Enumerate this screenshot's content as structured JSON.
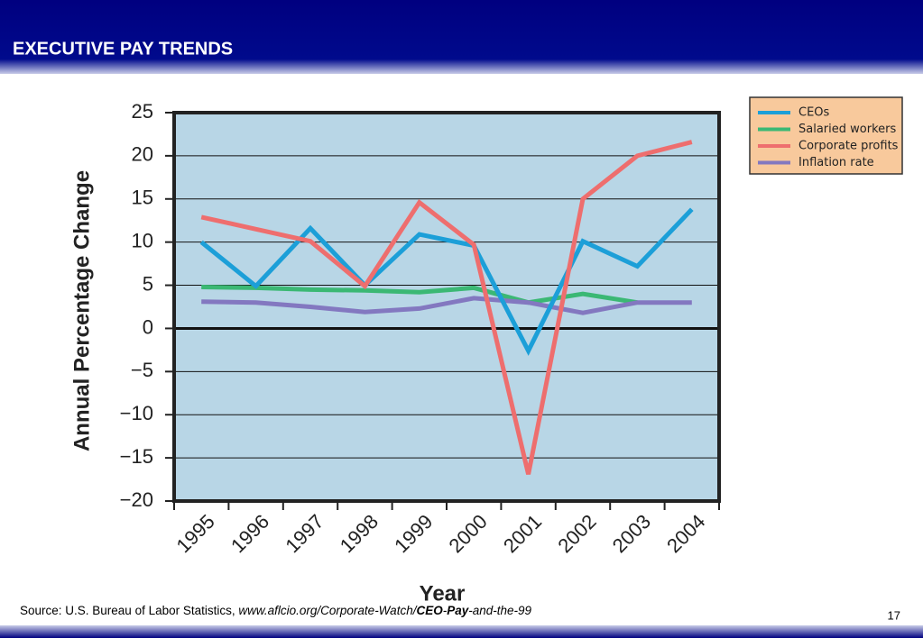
{
  "slide": {
    "title": "EXECUTIVE PAY TRENDS",
    "source": [
      "Source: U.S. Bureau of Labor Statistics, ",
      "www.aflcio.org/Corporate-Watch/",
      "CEO",
      "-",
      "Pay",
      "-and-the-99"
    ],
    "page_number": "17"
  },
  "chart_data": {
    "type": "line",
    "x_label": "Year",
    "y_label": "Annual Percentage Change",
    "categories": [
      "1995",
      "1996",
      "1997",
      "1998",
      "1999",
      "2000",
      "2001",
      "2002",
      "2003",
      "2004"
    ],
    "series": [
      {
        "name": "CEOs",
        "color": "#1c9fd8",
        "values": [
          10.0,
          4.9,
          11.6,
          5.0,
          10.9,
          9.6,
          -2.6,
          10.1,
          7.2,
          13.8
        ]
      },
      {
        "name": "Salaried workers",
        "color": "#3bb874",
        "values": [
          4.8,
          4.7,
          4.5,
          4.4,
          4.2,
          4.7,
          3.0,
          4.0,
          3.0,
          null
        ]
      },
      {
        "name": "Corporate profits",
        "color": "#ee6e6e",
        "values": [
          12.9,
          11.5,
          10.1,
          4.9,
          14.6,
          9.7,
          -16.9,
          15.0,
          20.0,
          21.6
        ]
      },
      {
        "name": "Inflation rate",
        "color": "#8378c0",
        "values": [
          3.1,
          3.0,
          2.5,
          1.9,
          2.3,
          3.5,
          3.0,
          1.8,
          3.0,
          3.0
        ]
      }
    ],
    "ylim": [
      -20,
      25
    ],
    "yticks": [
      {
        "value": -20,
        "label": "−20"
      },
      {
        "value": -15,
        "label": "−15"
      },
      {
        "value": -10,
        "label": "−10"
      },
      {
        "value": -5,
        "label": "−5"
      },
      0,
      5,
      10,
      15,
      20,
      25
    ],
    "grid": true,
    "legend": "upper right"
  }
}
